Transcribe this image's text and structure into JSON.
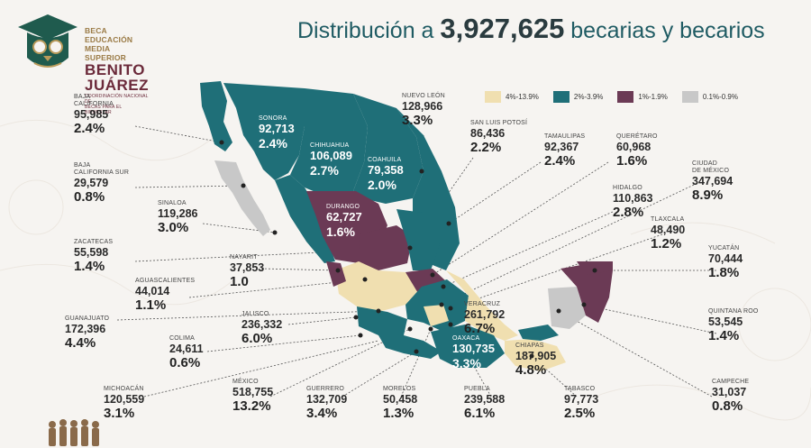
{
  "logo": {
    "line1": "BECA EDUCACIÓN",
    "line2": "MEDIA SUPERIOR",
    "line3": "BENITO",
    "line4": "JUÁREZ",
    "line5": "COORDINACIÓN NACIONAL DE",
    "line6": "BECAS PARA EL BIENESTAR"
  },
  "title": {
    "prefix": "Distribución a",
    "total": "3,927,625",
    "suffix": "becarias y becarios"
  },
  "legend": [
    {
      "label": "4%-13.9%",
      "color": "#f0dfb0"
    },
    {
      "label": "2%-3.9%",
      "color": "#1f6f78"
    },
    {
      "label": "1%-1.9%",
      "color": "#6b3a55"
    },
    {
      "label": "0.1%-0.9%",
      "color": "#c8c8c8"
    }
  ],
  "states": {
    "baja_california": {
      "name": "BAJA CALIFORNIA",
      "count": "95,985",
      "pct": "2.4%"
    },
    "baja_california_sur": {
      "name": "BAJA CALIFORNIA SUR",
      "count": "29,579",
      "pct": "0.8%"
    },
    "sinaloa": {
      "name": "SINALOA",
      "count": "119,286",
      "pct": "3.0%"
    },
    "zacatecas": {
      "name": "ZACATECAS",
      "count": "55,598",
      "pct": "1.4%"
    },
    "nayarit": {
      "name": "NAYARIT",
      "count": "37,853",
      "pct": "1.0"
    },
    "aguascalientes": {
      "name": "AGUASCALIENTES",
      "count": "44,014",
      "pct": "1.1%"
    },
    "guanajuato": {
      "name": "GUANAJUATO",
      "count": "172,396",
      "pct": "4.4%"
    },
    "jalisco": {
      "name": "JALISCO",
      "count": "236,332",
      "pct": "6.0%"
    },
    "colima": {
      "name": "COLIMA",
      "count": "24,611",
      "pct": "0.6%"
    },
    "michoacan": {
      "name": "MICHOACÁN",
      "count": "120,559",
      "pct": "3.1%"
    },
    "mexico": {
      "name": "MÉXICO",
      "count": "518,755",
      "pct": "13.2%"
    },
    "guerrero": {
      "name": "GUERRERO",
      "count": "132,709",
      "pct": "3.4%"
    },
    "morelos": {
      "name": "MORELOS",
      "count": "50,458",
      "pct": "1.3%"
    },
    "puebla": {
      "name": "PUEBLA",
      "count": "239,588",
      "pct": "6.1%"
    },
    "tabasco": {
      "name": "TABASCO",
      "count": "97,773",
      "pct": "2.5%"
    },
    "campeche": {
      "name": "CAMPECHE",
      "count": "31,037",
      "pct": "0.8%"
    },
    "quintana_roo": {
      "name": "QUINTANA ROO",
      "count": "53,545",
      "pct": "1.4%"
    },
    "yucatan": {
      "name": "YUCATÁN",
      "count": "70,444",
      "pct": "1.8%"
    },
    "tlaxcala": {
      "name": "TLAXCALA",
      "count": "48,490",
      "pct": "1.2%"
    },
    "cdmx": {
      "name1": "CIUDAD",
      "name2": "DE MÉXICO",
      "count": "347,694",
      "pct": "8.9%"
    },
    "hidalgo": {
      "name": "HIDALGO",
      "count": "110,863",
      "pct": "2.8%"
    },
    "queretaro": {
      "name": "QUERÉTARO",
      "count": "60,968",
      "pct": "1.6%"
    },
    "tamaulipas": {
      "name": "TAMAULIPAS",
      "count": "92,367",
      "pct": "2.4%"
    },
    "san_luis_potosi": {
      "name": "SAN LUIS POTOSÍ",
      "count": "86,436",
      "pct": "2.2%"
    },
    "nuevo_leon": {
      "name": "NUEVO LEÓN",
      "count": "128,966",
      "pct": "3.3%"
    },
    "sonora": {
      "name": "SONORA",
      "count": "92,713",
      "pct": "2.4%"
    },
    "chihuahua": {
      "name": "CHIHUAHUA",
      "count": "106,089",
      "pct": "2.7%"
    },
    "coahuila": {
      "name": "COAHUILA",
      "count": "79,358",
      "pct": "2.0%"
    },
    "durango": {
      "name": "DURANGO",
      "count": "62,727",
      "pct": "1.6%"
    },
    "veracruz": {
      "name": "VERACRUZ",
      "count": "261,792",
      "pct": "6.7%"
    },
    "oaxaca": {
      "name": "OAXACA",
      "count": "130,735",
      "pct": "3.3%"
    },
    "chiapas": {
      "name": "CHIAPAS",
      "count": "187,905",
      "pct": "4.8%"
    }
  }
}
